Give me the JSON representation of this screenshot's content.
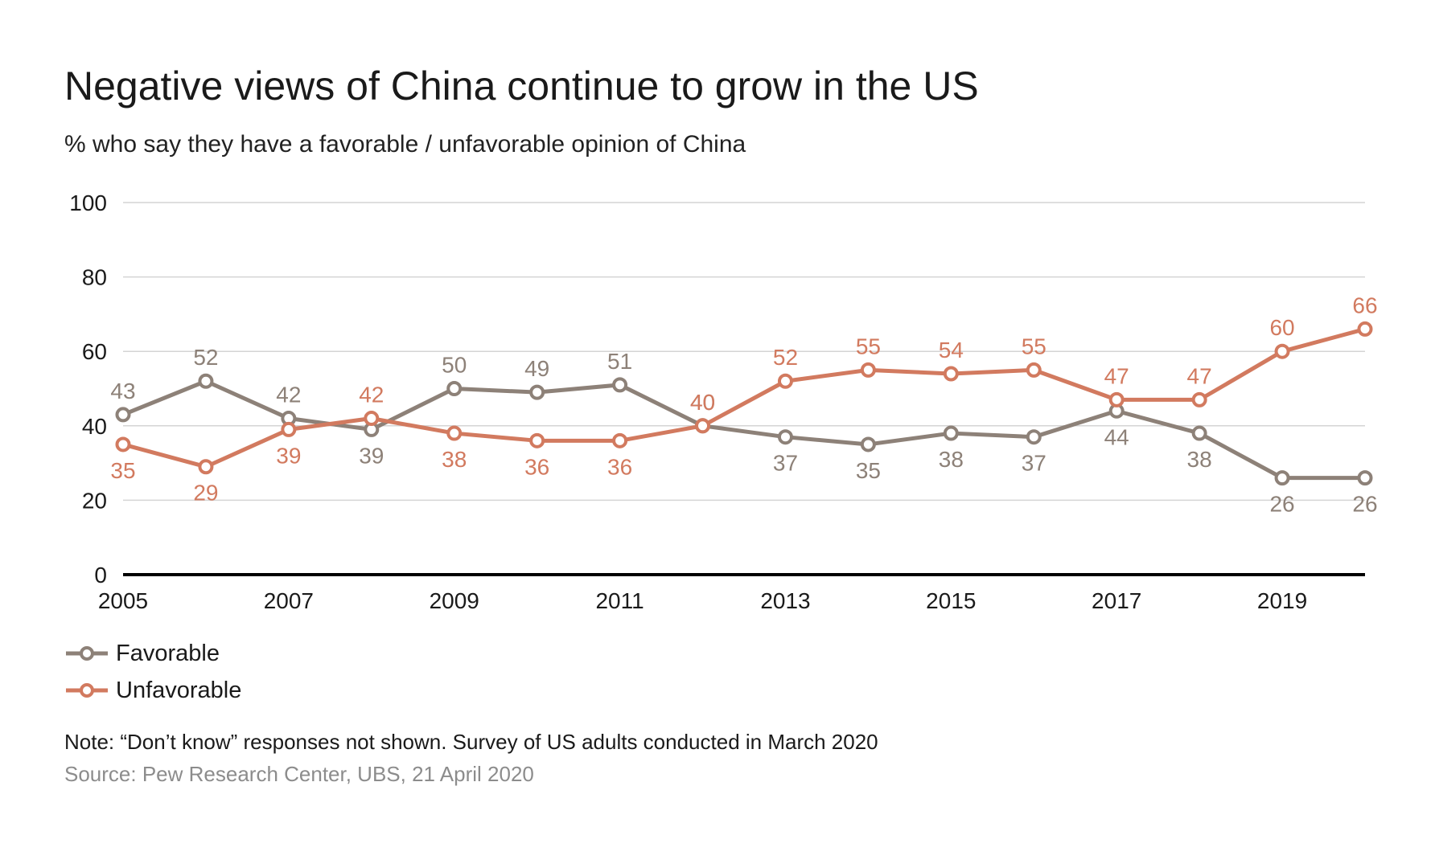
{
  "chart_data": {
    "type": "line",
    "title": "Negative views of China continue to grow in the US",
    "subtitle": "% who say they have a favorable / unfavorable opinion of China",
    "x": [
      2005,
      2006,
      2007,
      2008,
      2009,
      2010,
      2011,
      2012,
      2013,
      2014,
      2015,
      2016,
      2017,
      2018,
      2019,
      2020
    ],
    "x_tick_labels": [
      "2005",
      "2007",
      "2009",
      "2011",
      "2013",
      "2015",
      "2017",
      "2019"
    ],
    "x_tick_values": [
      2005,
      2007,
      2009,
      2011,
      2013,
      2015,
      2017,
      2019
    ],
    "y_tick_labels": [
      "0",
      "20",
      "40",
      "60",
      "80",
      "100"
    ],
    "ylim": [
      0,
      100
    ],
    "grid": true,
    "legend_position": "bottom-left",
    "series": [
      {
        "name": "Favorable",
        "color": "#8d8178",
        "values": [
          43,
          52,
          42,
          39,
          50,
          49,
          51,
          40,
          37,
          35,
          38,
          37,
          44,
          38,
          26,
          26
        ]
      },
      {
        "name": "Unfavorable",
        "color": "#d27a5f",
        "values": [
          35,
          29,
          39,
          42,
          38,
          36,
          36,
          40,
          52,
          55,
          54,
          55,
          47,
          47,
          60,
          66
        ]
      }
    ]
  },
  "note": "Note: “Don’t know” responses not shown. Survey of US adults conducted in March 2020",
  "source": "Source: Pew Research Center, UBS, 21 April 2020"
}
